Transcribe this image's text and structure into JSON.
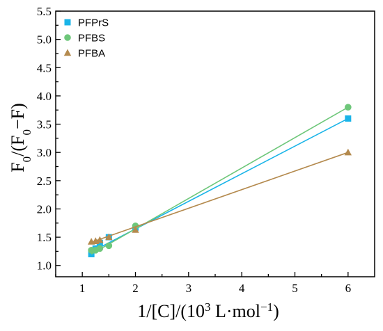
{
  "chart_data": {
    "type": "scatter",
    "title": "",
    "xlabel": {
      "pre": "1/[C]/(10",
      "sup1": "3",
      "mid": " L·mol",
      "sup2": "−1",
      "post": ")"
    },
    "ylabel": {
      "a": "F",
      "sub1": "0",
      "b": "/(F",
      "sub2": "0",
      "c": "−F)"
    },
    "xlim": [
      0.5,
      6.5
    ],
    "ylim": [
      0.8,
      5.5
    ],
    "xticks": [
      1,
      2,
      3,
      4,
      5,
      6
    ],
    "yticks": [
      1.0,
      1.5,
      2.0,
      2.5,
      3.0,
      3.5,
      4.0,
      4.5,
      5.0,
      5.5
    ],
    "legend_position": "top-left",
    "grid": false,
    "series": [
      {
        "name": "PFPrS",
        "marker": "square",
        "color": "#1ab4e8",
        "x": [
          1.17,
          1.25,
          1.33,
          1.5,
          2.0,
          6.0
        ],
        "y": [
          1.2,
          1.3,
          1.4,
          1.5,
          1.67,
          3.6
        ],
        "fit": [
          [
            1.17,
            1.24
          ],
          [
            6.0,
            3.6
          ]
        ]
      },
      {
        "name": "PFBS",
        "marker": "circle",
        "color": "#6ec77a",
        "x": [
          1.17,
          1.25,
          1.33,
          1.5,
          2.0,
          6.0
        ],
        "y": [
          1.27,
          1.27,
          1.3,
          1.35,
          1.7,
          3.8
        ],
        "fit": [
          [
            1.17,
            1.2
          ],
          [
            6.0,
            3.8
          ]
        ]
      },
      {
        "name": "PFBA",
        "marker": "triangle",
        "color": "#b48a4e",
        "x": [
          1.17,
          1.25,
          1.33,
          1.5,
          2.0,
          6.0
        ],
        "y": [
          1.42,
          1.43,
          1.45,
          1.5,
          1.63,
          3.0
        ],
        "fit": [
          [
            1.17,
            1.41
          ],
          [
            6.0,
            3.0
          ]
        ]
      }
    ]
  }
}
